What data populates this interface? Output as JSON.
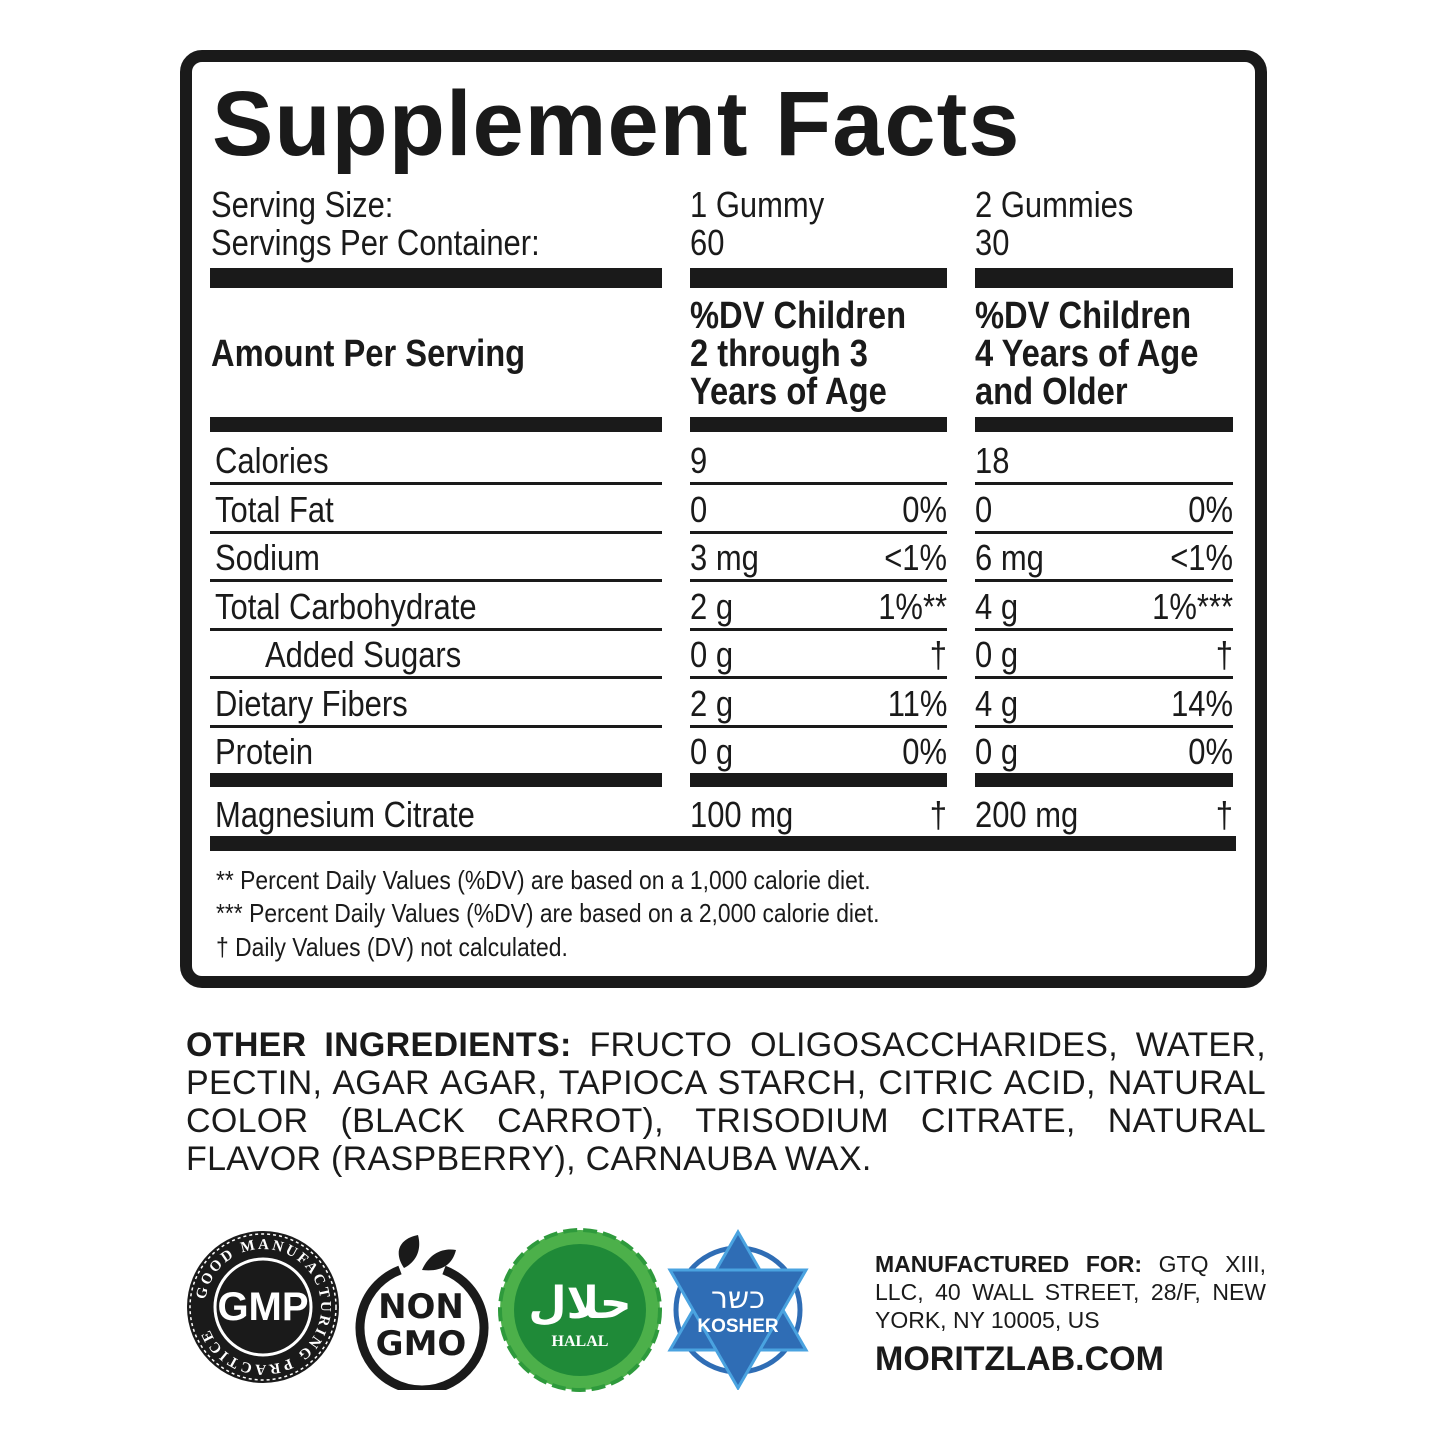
{
  "title": "Supplement Facts",
  "serving": {
    "size_label": "Serving Size:",
    "per_container_label": "Servings Per Container:",
    "col1_size": "1 Gummy",
    "col1_servings": "60",
    "col2_size": "2 Gummies",
    "col2_servings": "30"
  },
  "header": {
    "amount_label": "Amount Per Serving",
    "col1": [
      "%DV Children",
      "2 through 3",
      "Years of Age"
    ],
    "col2": [
      "%DV Children",
      "4 Years of Age",
      "and Older"
    ]
  },
  "rows": [
    {
      "label": "Calories",
      "a1": "9",
      "d1": "",
      "a2": "18",
      "d2": ""
    },
    {
      "label": "Total Fat",
      "a1": "0",
      "d1": "0%",
      "a2": "0",
      "d2": "0%"
    },
    {
      "label": "Sodium",
      "a1": "3 mg",
      "d1": "<1%",
      "a2": "6 mg",
      "d2": "<1%"
    },
    {
      "label": "Total Carbohydrate",
      "a1": "2 g",
      "d1": "1%**",
      "a2": "4 g",
      "d2": "1%***"
    },
    {
      "label": "Added Sugars",
      "a1": "0 g",
      "d1": "†",
      "a2": "0 g",
      "d2": "†"
    },
    {
      "label": "Dietary Fibers",
      "a1": "2 g",
      "d1": "11%",
      "a2": "4 g",
      "d2": "14%"
    },
    {
      "label": "Protein",
      "a1": "0 g",
      "d1": "0%",
      "a2": "0 g",
      "d2": "0%"
    }
  ],
  "magnesium": {
    "label": "Magnesium Citrate",
    "a1": "100 mg",
    "d1": "†",
    "a2": "200 mg",
    "d2": "†"
  },
  "footnotes": [
    "** Percent Daily Values (%DV) are based on a 1,000 calorie diet.",
    "*** Percent Daily Values (%DV) are based on a 2,000 calorie diet.",
    "† Daily Values (DV) not calculated."
  ],
  "ingredients": {
    "label": "OTHER INGREDIENTS:",
    "text": "FRUCTO OLIGOSACCHARIDES, WATER, PECTIN, AGAR AGAR, TAPIOCA STARCH, CITRIC ACID, NATURAL COLOR (BLACK CARROT), TRISODIUM CITRATE, NATURAL FLAVOR (RASPBERRY), CARNAUBA WAX."
  },
  "manufacturer": {
    "label": "MANUFACTURED FOR:",
    "text": "GTQ XIII, LLC, 40 WALL STREET, 28/F, NEW YORK, NY 10005, US",
    "website": "MORITZLAB.COM"
  },
  "badges": {
    "gmp": {
      "text": "GMP",
      "ring": "GOOD MANUFACTURING PRACTICE"
    },
    "nongmo": {
      "line1": "NON",
      "line2": "GMO"
    },
    "halal": {
      "arabic": "حلال",
      "text": "HALAL",
      "color": "#2e9a3c"
    },
    "kosher": {
      "hebrew": "כשר",
      "text": "KOSHER",
      "color": "#2f6db5"
    }
  }
}
